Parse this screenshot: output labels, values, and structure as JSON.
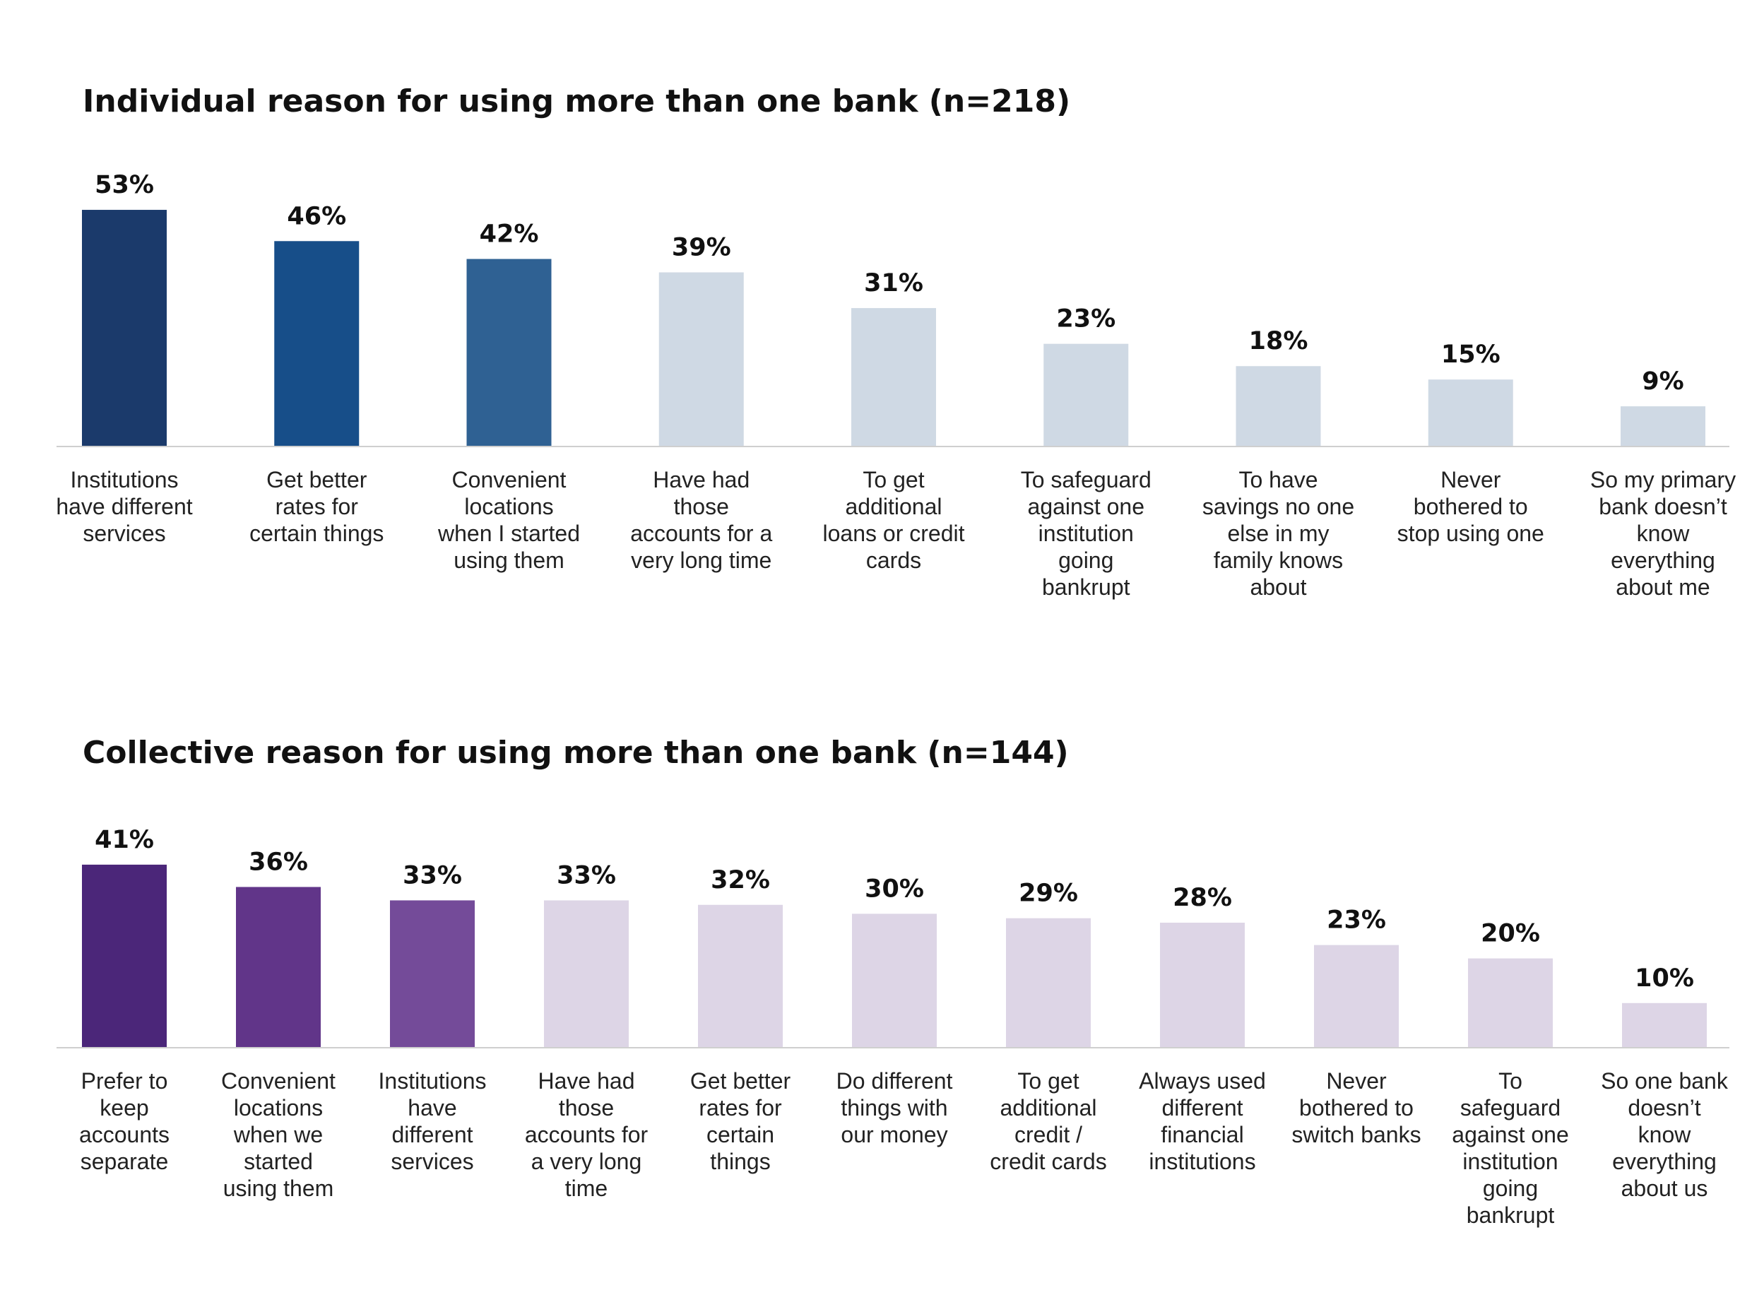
{
  "chart_data": [
    {
      "type": "bar",
      "title": "Individual reason for using more than one bank (n=218)",
      "xlabel": "",
      "ylabel": "",
      "ylim": [
        0,
        100
      ],
      "grid": false,
      "categories": [
        "Institutions have different services",
        "Get better rates for certain things",
        "Convenient locations when I started using them",
        "Have had those accounts for a very long time",
        "To get additional loans or credit cards",
        "To safeguard against one institution going bankrupt",
        "To have savings no one else in my family knows about",
        "Never bothered to stop using one",
        "So my primary bank doesn’t know everything about me"
      ],
      "category_lines": [
        [
          "Institutions",
          "have different",
          "services"
        ],
        [
          "Get better",
          "rates for",
          "certain things"
        ],
        [
          "Convenient",
          "locations",
          "when I started",
          "using them"
        ],
        [
          "Have had",
          "those",
          "accounts for a",
          "very long time"
        ],
        [
          "To get",
          "additional",
          "loans or credit",
          "cards"
        ],
        [
          "To safeguard",
          "against one",
          "institution",
          "going",
          "bankrupt"
        ],
        [
          "To have",
          "savings no one",
          "else in my",
          "family knows",
          "about"
        ],
        [
          "Never",
          "bothered to",
          "stop using one"
        ],
        [
          "So my primary",
          "bank doesn’t",
          "know",
          "everything",
          "about me"
        ]
      ],
      "values": [
        53,
        46,
        42,
        39,
        31,
        23,
        18,
        15,
        9
      ],
      "value_labels": [
        "53%",
        "46%",
        "42%",
        "39%",
        "31%",
        "23%",
        "18%",
        "15%",
        "9%"
      ],
      "colors": [
        "#1b3a6b",
        "#174e89",
        "#2f6193",
        "#cfd9e4",
        "#cfd9e4",
        "#cfd9e4",
        "#cfd9e4",
        "#cfd9e4",
        "#cfd9e4"
      ]
    },
    {
      "type": "bar",
      "title": "Collective reason for using more than one bank (n=144)",
      "xlabel": "",
      "ylabel": "",
      "ylim": [
        0,
        100
      ],
      "grid": false,
      "categories": [
        "Prefer to keep accounts separate",
        "Convenient locations when we started using them",
        "Institutions have different services",
        "Have had those accounts for a very long time",
        "Get better rates for certain things",
        "Do different things with our money",
        "To get additional credit / credit cards",
        "Always used different financial institutions",
        "Never bothered to switch banks",
        "To safeguard against one institution going bankrupt",
        "So one bank doesn’t know everything about us"
      ],
      "category_lines": [
        [
          "Prefer to",
          "keep",
          "accounts",
          "separate"
        ],
        [
          "Convenient",
          "locations",
          "when we",
          "started",
          "using them"
        ],
        [
          "Institutions",
          "have",
          "different",
          "services"
        ],
        [
          "Have had",
          "those",
          "accounts for",
          "a very long",
          "time"
        ],
        [
          "Get better",
          "rates for",
          "certain",
          "things"
        ],
        [
          "Do different",
          "things with",
          "our money"
        ],
        [
          "To get",
          "additional",
          "credit /",
          "credit cards"
        ],
        [
          "Always used",
          "different",
          "financial",
          "institutions"
        ],
        [
          "Never",
          "bothered to",
          "switch banks"
        ],
        [
          "To",
          "safeguard",
          "against one",
          "institution",
          "going",
          "bankrupt"
        ],
        [
          "So one bank",
          "doesn’t",
          "know",
          "everything",
          "about us"
        ]
      ],
      "values": [
        41,
        36,
        33,
        33,
        32,
        30,
        29,
        28,
        23,
        20,
        10
      ],
      "value_labels": [
        "41%",
        "36%",
        "33%",
        "33%",
        "32%",
        "30%",
        "29%",
        "28%",
        "23%",
        "20%",
        "10%"
      ],
      "colors": [
        "#4b2679",
        "#613589",
        "#744b99",
        "#ddd5e6",
        "#ddd5e6",
        "#ddd5e6",
        "#ddd5e6",
        "#ddd5e6",
        "#ddd5e6",
        "#ddd5e6",
        "#ddd5e6"
      ]
    }
  ]
}
